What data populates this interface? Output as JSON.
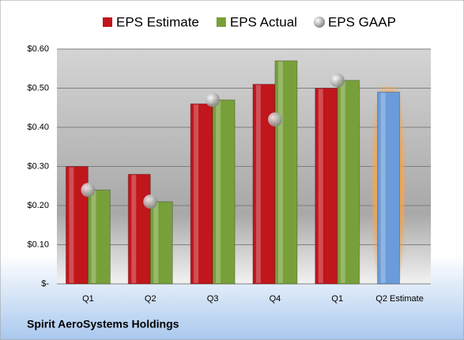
{
  "chart_data": {
    "type": "bar",
    "title": "Spirit AeroSystems Holdings",
    "categories": [
      "Q1",
      "Q2",
      "Q3",
      "Q4",
      "Q1",
      "Q2 Estimate"
    ],
    "series": [
      {
        "name": "EPS Estimate",
        "color": "#c0161c",
        "values": [
          0.3,
          0.28,
          0.46,
          0.51,
          0.5,
          0.49
        ],
        "colors": [
          "#c0161c",
          "#c0161c",
          "#c0161c",
          "#c0161c",
          "#c0161c",
          "#6b9bd8"
        ]
      },
      {
        "name": "EPS Actual",
        "color": "#77a03a",
        "values": [
          0.24,
          0.21,
          0.47,
          0.57,
          0.52,
          null
        ]
      },
      {
        "name": "EPS GAAP",
        "color": "#a6a6a6",
        "marker": "circle",
        "values": [
          0.24,
          0.21,
          0.47,
          0.42,
          0.52,
          null
        ]
      }
    ],
    "ylim": [
      0,
      0.6
    ],
    "yticks": [
      {
        "value": 0,
        "label": "$-"
      },
      {
        "value": 0.1,
        "label": "$0.10"
      },
      {
        "value": 0.2,
        "label": "$0.20"
      },
      {
        "value": 0.3,
        "label": "$0.30"
      },
      {
        "value": 0.4,
        "label": "$0.40"
      },
      {
        "value": 0.5,
        "label": "$0.50"
      },
      {
        "value": 0.6,
        "label": "$0.60"
      }
    ],
    "grid": true,
    "legend": "top"
  }
}
